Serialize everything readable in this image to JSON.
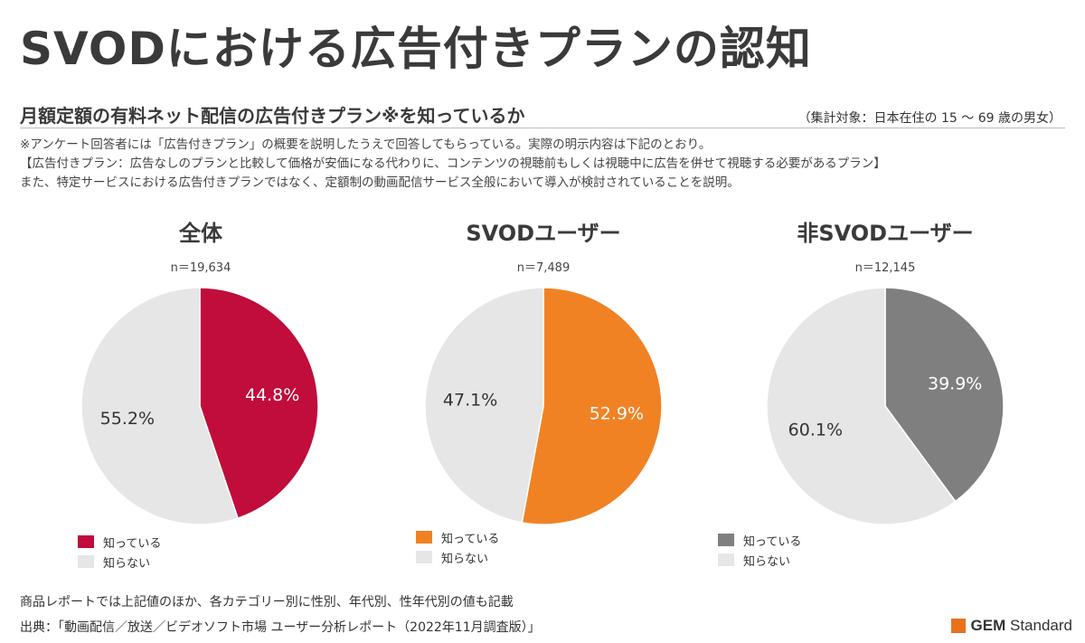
{
  "title": "SVODにおける広告付きプランの認知",
  "subtitle": "月額定額の有料ネット配信の広告付きプラン※を知っているか",
  "target_note": "（集計対象：日本在住の 15 ～ 69 歳の男女）",
  "notes": [
    "※アンケート回答者には「広告付きプラン」の概要を説明したうえで回答してもらっている。実際の明示内容は下記のとおり。",
    "【広告付きプラン：広告なしのプランと比較して価格が安価になる代わりに、コンテンツの視聴前もしくは視聴中に広告を併せて視聴する必要があるプラン】",
    "また、特定サービスにおける広告付きプランではなく、定額制の動画配信サービス全般において導入が検討されていることを説明。"
  ],
  "chart_data": [
    {
      "type": "pie",
      "title": "全体",
      "n_label": "n＝19,634",
      "slices": [
        {
          "label": "知っている",
          "value": 44.8,
          "display": "44.8%",
          "color": "#c00d3b",
          "text_color": "#ffffff"
        },
        {
          "label": "知らない",
          "value": 55.2,
          "display": "55.2%",
          "color": "#e6e6e6",
          "text_color": "#333333"
        }
      ]
    },
    {
      "type": "pie",
      "title": "SVODユーザー",
      "n_label": "n＝7,489",
      "slices": [
        {
          "label": "知っている",
          "value": 52.9,
          "display": "52.9%",
          "color": "#f08223",
          "text_color": "#ffffff"
        },
        {
          "label": "知らない",
          "value": 47.1,
          "display": "47.1%",
          "color": "#e6e6e6",
          "text_color": "#333333"
        }
      ]
    },
    {
      "type": "pie",
      "title": "非SVODユーザー",
      "n_label": "n＝12,145",
      "slices": [
        {
          "label": "知っている",
          "value": 39.9,
          "display": "39.9%",
          "color": "#7f7f7f",
          "text_color": "#ffffff"
        },
        {
          "label": "知らない",
          "value": 60.1,
          "display": "60.1%",
          "color": "#e6e6e6",
          "text_color": "#333333"
        }
      ]
    }
  ],
  "footer": {
    "line1": "商品レポートでは上記値のほか、各カテゴリー別に性別、年代別、性年代別の値も記載",
    "line2": "出典：「動画配信／放送／ビデオソフト市場 ユーザー分析レポート（2022年11月調査版）」"
  },
  "logo": {
    "bold": "GEM",
    "rest": " Standard",
    "color": "#e8711e"
  }
}
